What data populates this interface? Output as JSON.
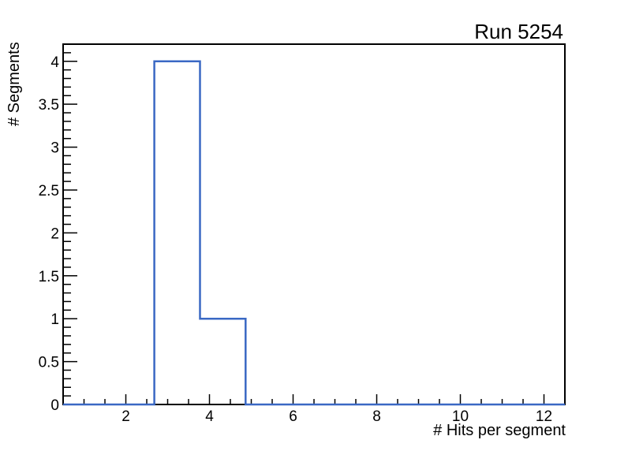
{
  "chart_data": {
    "type": "bar",
    "subtype": "step-histogram",
    "title": "Run 5254",
    "xlabel": "# Hits per segment",
    "ylabel": "# Segments",
    "xlim": [
      0.5,
      12.5
    ],
    "ylim": [
      0,
      4.2
    ],
    "n_bins": 11,
    "bin_counts": [
      0,
      0,
      4,
      1,
      0,
      0,
      0,
      0,
      0,
      0,
      0
    ],
    "nonzero_bins": [
      {
        "x_range": [
          2.68,
          3.77
        ],
        "count": 4
      },
      {
        "x_range": [
          3.77,
          4.86
        ],
        "count": 1
      }
    ],
    "x_major_ticks": [
      2,
      4,
      6,
      8,
      10,
      12
    ],
    "x_tick_labels": [
      "2",
      "4",
      "6",
      "8",
      "10",
      "12"
    ],
    "x_minor_step": 0.5,
    "y_major_ticks": [
      0,
      0.5,
      1,
      1.5,
      2,
      2.5,
      3,
      3.5,
      4
    ],
    "y_tick_labels": [
      "0",
      "0.5",
      "1",
      "1.5",
      "2",
      "2.5",
      "3",
      "3.5",
      "4"
    ],
    "y_minor_step": 0.1,
    "grid": false,
    "legend": null,
    "line_color": "#3a68c4",
    "axis_color": "#000000",
    "text_color": "#000000",
    "background_color": "#ffffff"
  }
}
